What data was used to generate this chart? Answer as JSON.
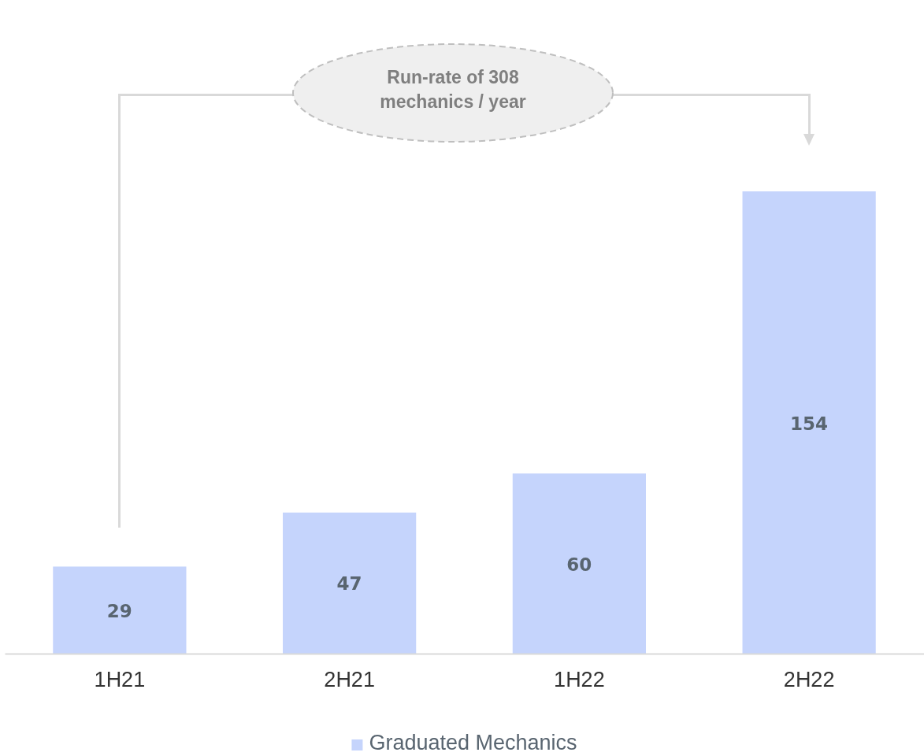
{
  "chart_data": {
    "type": "bar",
    "categories": [
      "1H21",
      "2H21",
      "1H22",
      "2H22"
    ],
    "series": [
      {
        "name": "Graduated Mechanics",
        "color": "#c5d4fc",
        "values": [
          29,
          47,
          60,
          154
        ]
      }
    ],
    "data_labels": true,
    "legend": "bottom",
    "annotations": [
      "Run-rate of 308 mechanics / year"
    ]
  }
}
